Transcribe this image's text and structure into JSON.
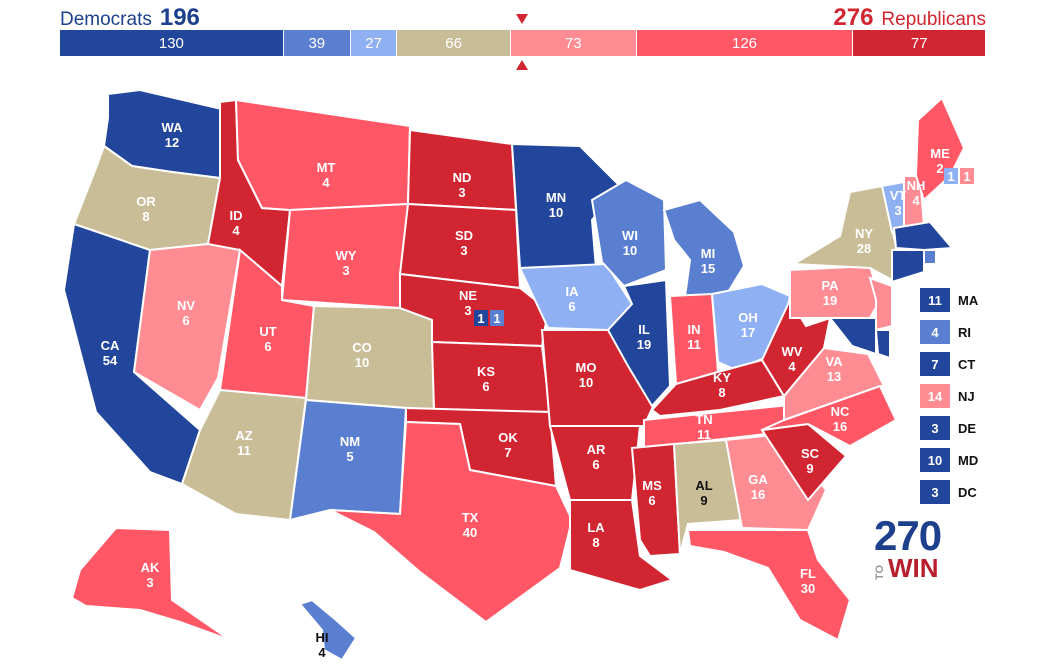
{
  "header": {
    "dem_label": "Democrats",
    "dem_total": "196",
    "rep_total": "276",
    "rep_label": "Republicans"
  },
  "colors": {
    "solid_d": "#22469b",
    "likely_d": "#5a7fd0",
    "lean_d": "#8fb0f2",
    "tossup": "#c9bd98",
    "lean_r": "#ff8c92",
    "likely_r": "#ff5765",
    "solid_r": "#d12532"
  },
  "tally": [
    {
      "value": "130",
      "category": "solid_d"
    },
    {
      "value": "39",
      "category": "likely_d"
    },
    {
      "value": "27",
      "category": "lean_d"
    },
    {
      "value": "66",
      "category": "tossup"
    },
    {
      "value": "73",
      "category": "lean_r"
    },
    {
      "value": "126",
      "category": "likely_r"
    },
    {
      "value": "77",
      "category": "solid_r"
    }
  ],
  "states": {
    "WA": {
      "abbr": "WA",
      "ev": "12",
      "category": "solid_d"
    },
    "OR": {
      "abbr": "OR",
      "ev": "8",
      "category": "tossup"
    },
    "CA": {
      "abbr": "CA",
      "ev": "54",
      "category": "solid_d"
    },
    "ID": {
      "abbr": "ID",
      "ev": "4",
      "category": "solid_r"
    },
    "NV": {
      "abbr": "NV",
      "ev": "6",
      "category": "lean_r"
    },
    "MT": {
      "abbr": "MT",
      "ev": "4",
      "category": "likely_r"
    },
    "WY": {
      "abbr": "WY",
      "ev": "3",
      "category": "likely_r"
    },
    "UT": {
      "abbr": "UT",
      "ev": "6",
      "category": "likely_r"
    },
    "AZ": {
      "abbr": "AZ",
      "ev": "11",
      "category": "tossup"
    },
    "CO": {
      "abbr": "CO",
      "ev": "10",
      "category": "tossup"
    },
    "NM": {
      "abbr": "NM",
      "ev": "5",
      "category": "likely_d"
    },
    "ND": {
      "abbr": "ND",
      "ev": "3",
      "category": "solid_r"
    },
    "SD": {
      "abbr": "SD",
      "ev": "3",
      "category": "solid_r"
    },
    "NE": {
      "abbr": "NE",
      "ev": "3",
      "category": "solid_r"
    },
    "KS": {
      "abbr": "KS",
      "ev": "6",
      "category": "solid_r"
    },
    "OK": {
      "abbr": "OK",
      "ev": "7",
      "category": "solid_r"
    },
    "TX": {
      "abbr": "TX",
      "ev": "40",
      "category": "likely_r"
    },
    "MN": {
      "abbr": "MN",
      "ev": "10",
      "category": "solid_d"
    },
    "IA": {
      "abbr": "IA",
      "ev": "6",
      "category": "lean_d"
    },
    "MO": {
      "abbr": "MO",
      "ev": "10",
      "category": "solid_r"
    },
    "AR": {
      "abbr": "AR",
      "ev": "6",
      "category": "solid_r"
    },
    "LA": {
      "abbr": "LA",
      "ev": "8",
      "category": "solid_r"
    },
    "WI": {
      "abbr": "WI",
      "ev": "10",
      "category": "likely_d"
    },
    "IL": {
      "abbr": "IL",
      "ev": "19",
      "category": "solid_d"
    },
    "MI": {
      "abbr": "MI",
      "ev": "15",
      "category": "likely_d"
    },
    "IN": {
      "abbr": "IN",
      "ev": "11",
      "category": "likely_r"
    },
    "OH": {
      "abbr": "OH",
      "ev": "17",
      "category": "lean_d"
    },
    "KY": {
      "abbr": "KY",
      "ev": "8",
      "category": "solid_r"
    },
    "TN": {
      "abbr": "TN",
      "ev": "11",
      "category": "likely_r"
    },
    "MS": {
      "abbr": "MS",
      "ev": "6",
      "category": "solid_r"
    },
    "AL": {
      "abbr": "AL",
      "ev": "9",
      "category": "tossup"
    },
    "GA": {
      "abbr": "GA",
      "ev": "16",
      "category": "lean_r"
    },
    "FL": {
      "abbr": "FL",
      "ev": "30",
      "category": "likely_r"
    },
    "SC": {
      "abbr": "SC",
      "ev": "9",
      "category": "solid_r"
    },
    "NC": {
      "abbr": "NC",
      "ev": "16",
      "category": "likely_r"
    },
    "VA": {
      "abbr": "VA",
      "ev": "13",
      "category": "lean_r"
    },
    "WV": {
      "abbr": "WV",
      "ev": "4",
      "category": "solid_r"
    },
    "PA": {
      "abbr": "PA",
      "ev": "19",
      "category": "lean_r"
    },
    "NY": {
      "abbr": "NY",
      "ev": "28",
      "category": "tossup"
    },
    "VT": {
      "abbr": "VT",
      "ev": "3",
      "category": "lean_d"
    },
    "NH": {
      "abbr": "NH",
      "ev": "4",
      "category": "lean_r"
    },
    "ME": {
      "abbr": "ME",
      "ev": "2",
      "category": "likely_r"
    },
    "AK": {
      "abbr": "AK",
      "ev": "3",
      "category": "likely_r"
    },
    "HI": {
      "abbr": "HI",
      "ev": "4",
      "category": "likely_d"
    }
  },
  "district_splits": {
    "ne_d1": {
      "value": "1",
      "category": "solid_d"
    },
    "ne_d2": {
      "value": "1",
      "category": "likely_d"
    },
    "me_d1": {
      "value": "1",
      "category": "lean_d"
    },
    "me_d2": {
      "value": "1",
      "category": "lean_r"
    }
  },
  "small_states": [
    {
      "abbr": "MA",
      "ev": "11",
      "category": "solid_d"
    },
    {
      "abbr": "RI",
      "ev": "4",
      "category": "likely_d"
    },
    {
      "abbr": "CT",
      "ev": "7",
      "category": "solid_d"
    },
    {
      "abbr": "NJ",
      "ev": "14",
      "category": "lean_r"
    },
    {
      "abbr": "DE",
      "ev": "3",
      "category": "solid_d"
    },
    {
      "abbr": "MD",
      "ev": "10",
      "category": "solid_d"
    },
    {
      "abbr": "DC",
      "ev": "3",
      "category": "solid_d"
    }
  ],
  "logo": {
    "number": "270",
    "to": "TO",
    "win": "WIN"
  }
}
